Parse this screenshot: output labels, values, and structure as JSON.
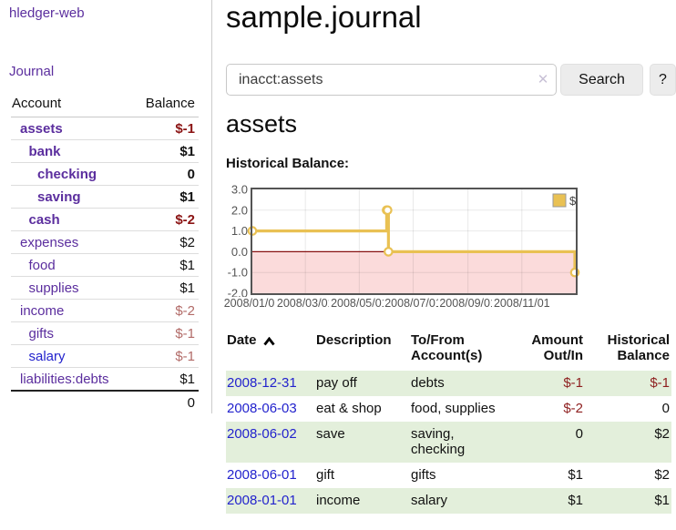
{
  "brand": "hledger-web",
  "sidebar": {
    "journal_link": "Journal",
    "accounts_table": {
      "headers": {
        "account": "Account",
        "balance": "Balance"
      },
      "rows": [
        {
          "account": "assets",
          "indent": 0,
          "bold": true,
          "link_color": "purple",
          "balance": "$-1",
          "balance_style": "neg-strong"
        },
        {
          "account": "bank",
          "indent": 1,
          "bold": true,
          "link_color": "purple",
          "balance": "$1",
          "balance_style": "pos"
        },
        {
          "account": "checking",
          "indent": 2,
          "bold": true,
          "link_color": "purple",
          "balance": "0",
          "balance_style": "pos"
        },
        {
          "account": "saving",
          "indent": 2,
          "bold": true,
          "link_color": "purple",
          "balance": "$1",
          "balance_style": "pos"
        },
        {
          "account": "cash",
          "indent": 1,
          "bold": true,
          "link_color": "purple",
          "balance": "$-2",
          "balance_style": "neg-strong"
        },
        {
          "account": "expenses",
          "indent": 0,
          "bold": false,
          "link_color": "purple",
          "balance": "$2",
          "balance_style": "pos"
        },
        {
          "account": "food",
          "indent": 1,
          "bold": false,
          "link_color": "purple",
          "balance": "$1",
          "balance_style": "pos"
        },
        {
          "account": "supplies",
          "indent": 1,
          "bold": false,
          "link_color": "purple",
          "balance": "$1",
          "balance_style": "pos"
        },
        {
          "account": "income",
          "indent": 0,
          "bold": false,
          "link_color": "purple",
          "balance": "$-2",
          "balance_style": "neg-soft"
        },
        {
          "account": "gifts",
          "indent": 1,
          "bold": false,
          "link_color": "purple",
          "balance": "$-1",
          "balance_style": "neg-soft"
        },
        {
          "account": "salary",
          "indent": 1,
          "bold": false,
          "link_color": "blue",
          "balance": "$-1",
          "balance_style": "neg-soft"
        },
        {
          "account": "liabilities:debts",
          "indent": 0,
          "bold": false,
          "link_color": "purple",
          "balance": "$1",
          "balance_style": "pos"
        }
      ],
      "total": "0"
    }
  },
  "main": {
    "title": "sample.journal",
    "search": {
      "value": "inacct:assets",
      "clear_glyph": "✕",
      "search_button": "Search",
      "help_button": "?"
    },
    "account_heading": "assets",
    "chart_label": "Historical Balance:"
  },
  "chart_data": {
    "type": "line",
    "step": true,
    "title": "Historical Balance",
    "series": [
      {
        "name": "$",
        "color": "#e9c153",
        "points": [
          {
            "x": "2008/01/01",
            "y": 1
          },
          {
            "x": "2008/06/01",
            "y": 2
          },
          {
            "x": "2008/06/02",
            "y": 2
          },
          {
            "x": "2008/06/03",
            "y": 0
          },
          {
            "x": "2008/12/31",
            "y": -1
          }
        ]
      }
    ],
    "ylim": [
      -2,
      3
    ],
    "yticks": [
      3.0,
      2.0,
      1.0,
      0.0,
      -1.0,
      -2.0
    ],
    "ytick_labels": [
      "3.0",
      "2.0",
      "1.0",
      "0.0",
      "-1.0",
      "-2.0"
    ],
    "xticks": [
      "2008/01/01",
      "2008/03/01",
      "2008/05/01",
      "2008/07/01",
      "2008/09/01",
      "2008/11/01"
    ],
    "x_start": "2008/01/01",
    "x_span_days": 365,
    "grid": true,
    "legend_position": "top-right",
    "legend_label": "$",
    "negative_region_color": "#fbdbdb",
    "zero_line_color": "#871010",
    "grid_border_color": "#545454"
  },
  "transactions": {
    "headers": [
      "Date",
      "Description",
      "To/From Account(s)",
      "Amount Out/In",
      "Historical Balance"
    ],
    "sort_icon": "chevron-up-icon",
    "sort_ascending_on": "Date",
    "rows": [
      {
        "date": "2008-12-31",
        "description": "pay off",
        "accounts": "debts",
        "amount": "$-1",
        "amount_neg": true,
        "balance": "$-1",
        "balance_neg": true
      },
      {
        "date": "2008-06-03",
        "description": "eat & shop",
        "accounts": "food, supplies",
        "amount": "$-2",
        "amount_neg": true,
        "balance": "0",
        "balance_neg": false
      },
      {
        "date": "2008-06-02",
        "description": "save",
        "accounts": "saving, checking",
        "amount": "0",
        "amount_neg": false,
        "balance": "$2",
        "balance_neg": false
      },
      {
        "date": "2008-06-01",
        "description": "gift",
        "accounts": "gifts",
        "amount": "$1",
        "amount_neg": false,
        "balance": "$2",
        "balance_neg": false
      },
      {
        "date": "2008-01-01",
        "description": "income",
        "accounts": "salary",
        "amount": "$1",
        "amount_neg": false,
        "balance": "$1",
        "balance_neg": false
      }
    ]
  },
  "colors": {
    "link_purple": "#5b2e9e",
    "link_blue": "#2323cd",
    "negative_strong": "#8b1414",
    "negative_soft": "#b26b68",
    "negative_table": "#8e1f1f",
    "row_stripe_green": "#e3efdb",
    "chart_gold": "#e9c153"
  }
}
